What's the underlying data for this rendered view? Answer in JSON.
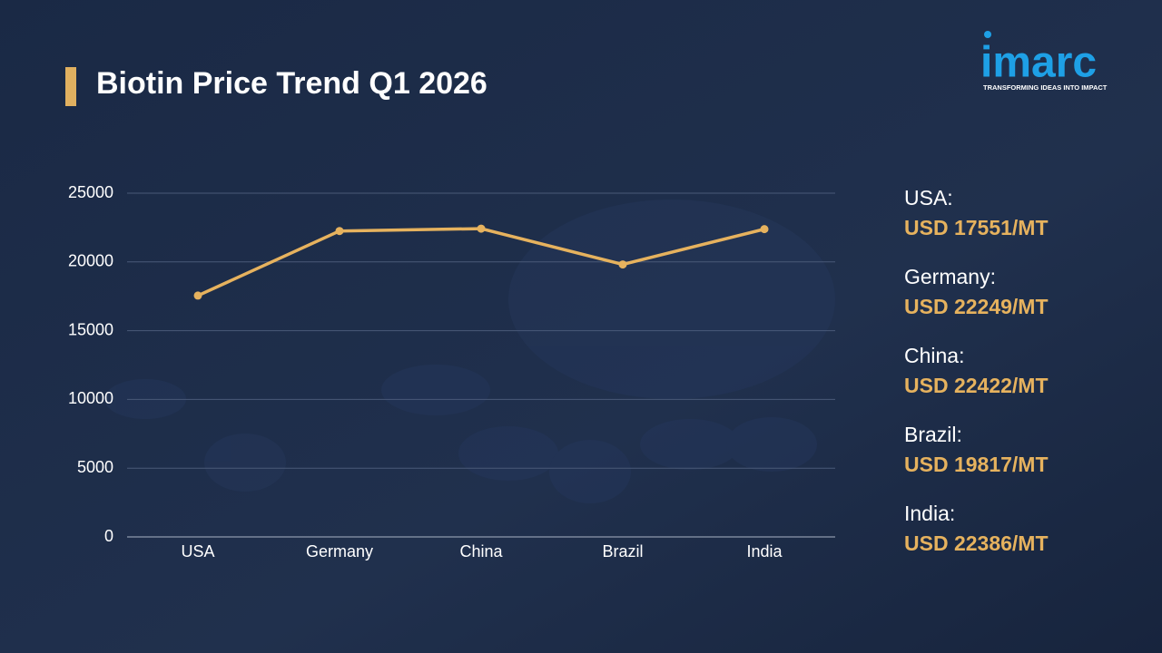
{
  "chart_data": {
    "type": "line",
    "title": "Biotin Price Trend Q1 2026",
    "categories": [
      "USA",
      "Germany",
      "China",
      "Brazil",
      "India"
    ],
    "values": [
      17551,
      22249,
      22422,
      19817,
      22386
    ],
    "value_labels": [
      "USD 17551/MT",
      "USD 22249/MT",
      "USD 22422/MT",
      "USD 19817/MT",
      "USD 22386/MT"
    ],
    "panel_labels": [
      "USA:",
      "Germany:",
      "China:",
      "Brazil:",
      "India:"
    ],
    "color": "#e6b25e",
    "ylim": [
      0,
      25000
    ],
    "yticks": [
      0,
      5000,
      10000,
      15000,
      20000,
      25000
    ],
    "grid": true
  },
  "logo": {
    "name": "imarc",
    "tagline": "TRANSFORMING IDEAS INTO IMPACT"
  }
}
